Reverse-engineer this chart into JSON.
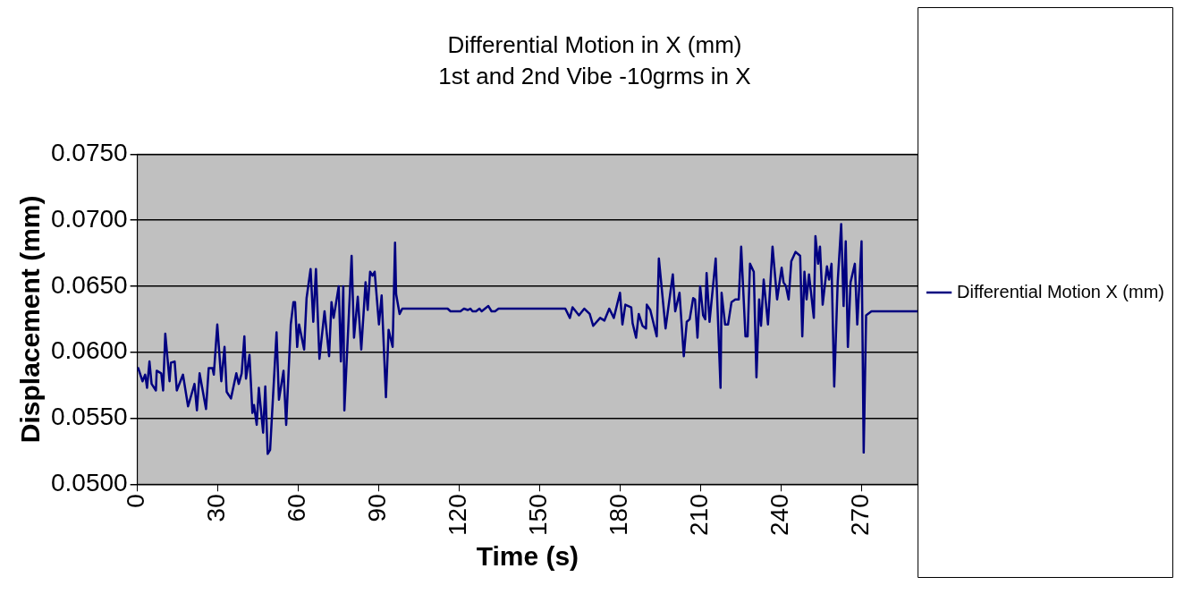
{
  "chart_data": {
    "type": "line",
    "title": "Differential Motion in X (mm)",
    "subtitle": "1st and 2nd Vibe -10grms in X",
    "xlabel": "Time (s)",
    "ylabel": "Displacement (mm)",
    "xlim": [
      0,
      291
    ],
    "xticks": [
      0,
      30,
      60,
      90,
      120,
      150,
      180,
      210,
      240,
      270
    ],
    "ylim": [
      0.05,
      0.075
    ],
    "yticks": [
      {
        "value": 0.05,
        "label": "0.0500"
      },
      {
        "value": 0.055,
        "label": "0.0550"
      },
      {
        "value": 0.06,
        "label": "0.0600"
      },
      {
        "value": 0.065,
        "label": "0.0650"
      },
      {
        "value": 0.07,
        "label": "0.0700"
      },
      {
        "value": 0.075,
        "label": "0.0750"
      }
    ],
    "grid": "y",
    "legend": "right",
    "marker": "none",
    "line_style": "solid",
    "series": [
      {
        "name": "Differential Motion X (mm)",
        "color": "#000080",
        "x": [
          0,
          0.3,
          1.9,
          2.9,
          3.6,
          4.5,
          5.3,
          6.9,
          7.2,
          8.9,
          9.6,
          10.4,
          12,
          12.5,
          13.9,
          14.7,
          17,
          18.9,
          21.3,
          22.2,
          23.2,
          25.6,
          26.6,
          28,
          28.5,
          29.8,
          31.3,
          32.5,
          33.3,
          34.9,
          36.9,
          37.8,
          38.9,
          39.9,
          40.5,
          41.8,
          42.9,
          43.5,
          44.5,
          45.3,
          46.9,
          47.7,
          48.6,
          49.5,
          51.9,
          52.8,
          54.5,
          55.5,
          57.2,
          58.2,
          58.8,
          59.6,
          60.3,
          62.2,
          63.1,
          64.6,
          65.6,
          66.6,
          67.9,
          69.8,
          71.5,
          72.4,
          73.2,
          75.1,
          75.9,
          76.8,
          77.2,
          79.9,
          80.8,
          82.2,
          83.5,
          85.1,
          85.9,
          86.8,
          87.7,
          88.5,
          90.1,
          91.1,
          92.7,
          93.7,
          95.2,
          96.1,
          96.5,
          97.8,
          98.8,
          115.7,
          116.8,
          120.5,
          121.8,
          123.2,
          124.2,
          125,
          126.3,
          127.6,
          128.4,
          130.9,
          132.1,
          133.4,
          134.7,
          159.6,
          161.3,
          162.3,
          164.7,
          166.7,
          168.7,
          170,
          172.6,
          174.2,
          176,
          177.7,
          180,
          180.9,
          182,
          184.2,
          184.7,
          186,
          187,
          188.4,
          189.7,
          190,
          191.3,
          193.7,
          194.5,
          197,
          199.7,
          200.6,
          202.2,
          203.8,
          204.9,
          206,
          207.3,
          208,
          208.9,
          209.9,
          211,
          211.8,
          212.3,
          213.4,
          215.7,
          217.5,
          217.9,
          219.2,
          220.3,
          221.6,
          223,
          224.3,
          225.2,
          226.8,
          227.6,
          228.5,
          229.9,
          230.9,
          231.9,
          232.6,
          233.6,
          235.2,
          236.9,
          238.6,
          240.3,
          241,
          241.9,
          242.9,
          243.9,
          245.5,
          247.2,
          248,
          248.8,
          249.6,
          250.5,
          252.3,
          252.9,
          253.9,
          254.6,
          255.6,
          257.2,
          258,
          258.9,
          259.9,
          261.2,
          262.5,
          263.4,
          264.2,
          265,
          266,
          267.6,
          268.5,
          270.1,
          270.9,
          271.8,
          273.8,
          291
        ],
        "values": [
          0.0586,
          0.0588,
          0.0578,
          0.0583,
          0.0573,
          0.0593,
          0.0576,
          0.0571,
          0.0586,
          0.0584,
          0.0571,
          0.0614,
          0.0578,
          0.0592,
          0.0593,
          0.0571,
          0.0583,
          0.0559,
          0.0576,
          0.0556,
          0.0584,
          0.0557,
          0.0588,
          0.0588,
          0.0583,
          0.0621,
          0.0578,
          0.0604,
          0.057,
          0.0565,
          0.0584,
          0.0576,
          0.0584,
          0.0612,
          0.058,
          0.0598,
          0.0554,
          0.056,
          0.0545,
          0.0573,
          0.0539,
          0.0574,
          0.0523,
          0.0526,
          0.0615,
          0.0564,
          0.0586,
          0.0545,
          0.0621,
          0.0638,
          0.0638,
          0.0604,
          0.0621,
          0.0602,
          0.0641,
          0.0663,
          0.0623,
          0.0663,
          0.0595,
          0.0631,
          0.0597,
          0.0638,
          0.0626,
          0.065,
          0.0593,
          0.065,
          0.0556,
          0.0673,
          0.0611,
          0.0642,
          0.0602,
          0.0653,
          0.0632,
          0.0661,
          0.0658,
          0.0661,
          0.0621,
          0.0643,
          0.0566,
          0.0617,
          0.0604,
          0.0683,
          0.0644,
          0.0629,
          0.0633,
          0.0633,
          0.0631,
          0.0631,
          0.0633,
          0.0632,
          0.0633,
          0.0631,
          0.0631,
          0.0633,
          0.0631,
          0.0635,
          0.0631,
          0.0631,
          0.0633,
          0.0633,
          0.0626,
          0.0634,
          0.0628,
          0.0633,
          0.0629,
          0.062,
          0.0626,
          0.0624,
          0.0633,
          0.0626,
          0.0645,
          0.0621,
          0.0636,
          0.0634,
          0.0622,
          0.0611,
          0.0629,
          0.062,
          0.0618,
          0.0636,
          0.0632,
          0.0612,
          0.0671,
          0.0618,
          0.0659,
          0.0631,
          0.0645,
          0.0597,
          0.0623,
          0.0625,
          0.0641,
          0.064,
          0.0611,
          0.065,
          0.0628,
          0.0625,
          0.066,
          0.0623,
          0.0671,
          0.0573,
          0.0645,
          0.0621,
          0.0621,
          0.0638,
          0.064,
          0.064,
          0.068,
          0.0612,
          0.0612,
          0.0667,
          0.0661,
          0.0581,
          0.064,
          0.062,
          0.0655,
          0.0621,
          0.068,
          0.064,
          0.0664,
          0.0653,
          0.065,
          0.064,
          0.0669,
          0.0676,
          0.0673,
          0.0612,
          0.0661,
          0.064,
          0.0659,
          0.0626,
          0.0688,
          0.0667,
          0.068,
          0.0636,
          0.0665,
          0.0655,
          0.0667,
          0.0574,
          0.0653,
          0.0697,
          0.0635,
          0.0684,
          0.0604,
          0.0653,
          0.0667,
          0.0621,
          0.0684,
          0.0524,
          0.0628,
          0.0631,
          0.0631
        ]
      }
    ]
  }
}
